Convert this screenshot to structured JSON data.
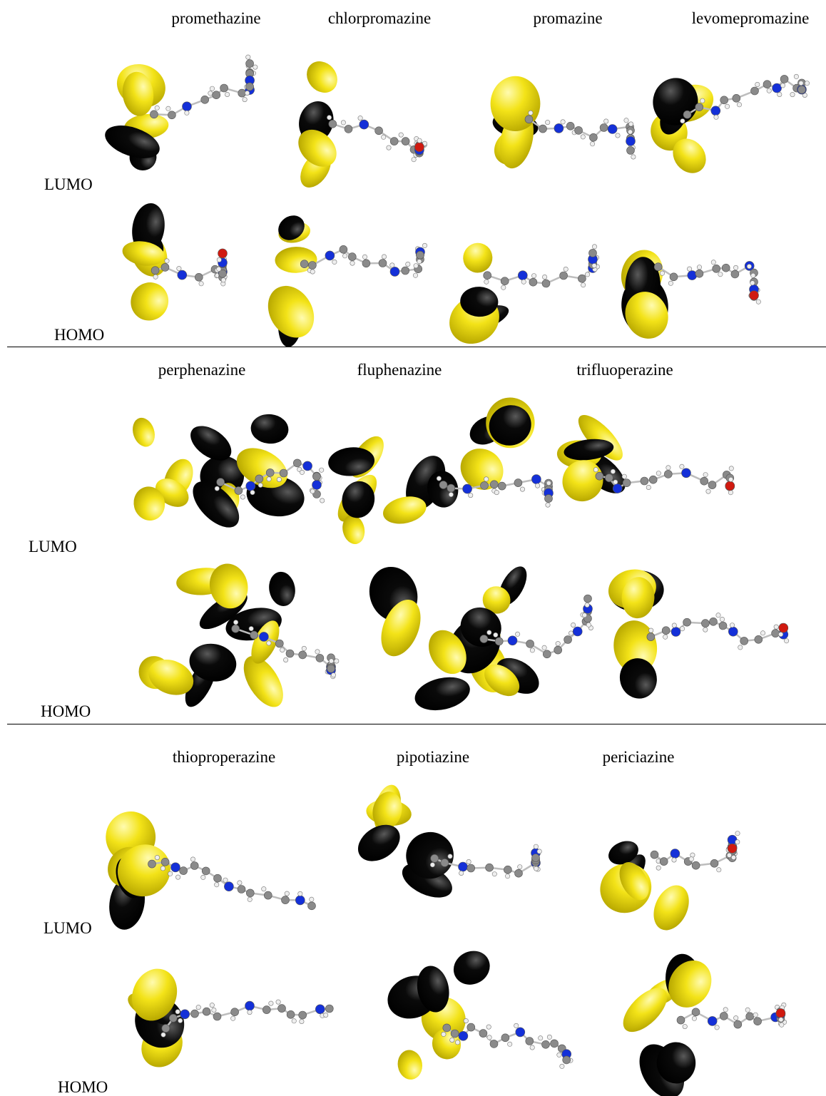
{
  "colors": {
    "lobe_positive": "#f3e318",
    "lobe_negative": "#0a0a0a",
    "carbon": "#8a8a8a",
    "nitrogen": "#1430d8",
    "hydrogen": "#eeeeee",
    "oxygen": "#d01a10",
    "chlorine": "#3ad21a",
    "fluorine": "#a0e6ee",
    "divider": "#000000"
  },
  "panels": [
    {
      "molecules": [
        "promethazine",
        "chlorpromazine",
        "promazine",
        "levomepromazine"
      ],
      "lumo_label": "LUMO",
      "homo_label": "HOMO"
    },
    {
      "molecules": [
        "perphenazine",
        "fluphenazine",
        "trifluoperazine"
      ],
      "lumo_label": "LUMO",
      "homo_label": "HOMO"
    },
    {
      "molecules": [
        "thioproperazine",
        "pipotiazine",
        "periciazine"
      ],
      "lumo_label": "LUMO",
      "homo_label": "HOMO"
    }
  ]
}
